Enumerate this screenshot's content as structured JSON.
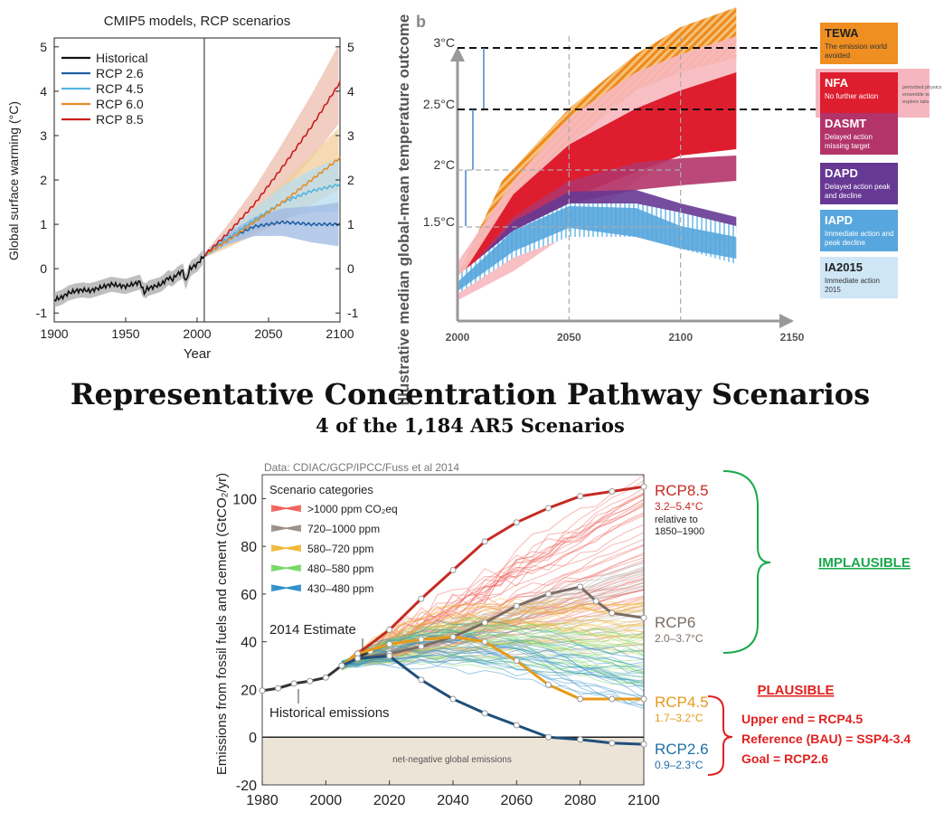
{
  "chart_data": [
    {
      "type": "line",
      "title": "CMIP5 models, RCP scenarios",
      "xlabel": "Year",
      "ylabel": "Global surface warming (°C)",
      "xlim": [
        1900,
        2100
      ],
      "ylim": [
        -1.2,
        5.2
      ],
      "xticks": [
        "1900",
        "1950",
        "2000",
        "2050",
        "2100"
      ],
      "yticks": [
        "-1",
        "0",
        "1",
        "2",
        "3",
        "4",
        "5"
      ],
      "vline_year": 2005,
      "legend_position": "top-left",
      "series": [
        {
          "name": "Historical",
          "color": "#111111",
          "x": [
            1900,
            1905,
            1910,
            1915,
            1920,
            1925,
            1930,
            1935,
            1940,
            1945,
            1950,
            1955,
            1960,
            1963,
            1965,
            1970,
            1975,
            1980,
            1983,
            1985,
            1990,
            1992,
            1995,
            2000,
            2005
          ],
          "y": [
            -0.7,
            -0.65,
            -0.55,
            -0.5,
            -0.48,
            -0.5,
            -0.45,
            -0.4,
            -0.35,
            -0.38,
            -0.4,
            -0.35,
            -0.3,
            -0.55,
            -0.45,
            -0.4,
            -0.35,
            -0.2,
            -0.25,
            -0.15,
            -0.05,
            -0.3,
            0.0,
            0.1,
            0.3
          ]
        },
        {
          "name": "RCP 2.6",
          "color": "#1f5fa5",
          "x": [
            2005,
            2020,
            2040,
            2060,
            2080,
            2100
          ],
          "y": [
            0.3,
            0.65,
            0.95,
            1.05,
            1.0,
            1.0
          ]
        },
        {
          "name": "RCP 4.5",
          "color": "#56b4e0",
          "x": [
            2005,
            2020,
            2040,
            2060,
            2080,
            2100
          ],
          "y": [
            0.3,
            0.65,
            1.1,
            1.5,
            1.75,
            1.9
          ]
        },
        {
          "name": "RCP 6.0",
          "color": "#e48c2a",
          "x": [
            2005,
            2020,
            2040,
            2060,
            2080,
            2100
          ],
          "y": [
            0.3,
            0.6,
            1.05,
            1.5,
            2.0,
            2.5
          ]
        },
        {
          "name": "RCP 8.5",
          "color": "#c8201e",
          "x": [
            2005,
            2020,
            2040,
            2060,
            2080,
            2100
          ],
          "y": [
            0.3,
            0.75,
            1.45,
            2.3,
            3.2,
            4.2
          ]
        }
      ]
    },
    {
      "type": "area",
      "panel_label": "b",
      "ylabel": "Illustrative median global-mean temperature outcome",
      "xticks": [
        "2000",
        "2050",
        "2100",
        "2150"
      ],
      "yticks": [
        "1.5°C",
        "2°C",
        "2.5°C",
        "3°C"
      ],
      "legend": [
        {
          "code": "TEWA",
          "desc": "The emission world avoided",
          "color": "#ef8f22"
        },
        {
          "code": "NFA",
          "desc": "No further action",
          "note": "perturbed physics ensemble to explore tails",
          "color": "#de1e2e"
        },
        {
          "code": "DASMT",
          "desc": "Delayed action missing target",
          "color": "#b33469"
        },
        {
          "code": "DAPD",
          "desc": "Delayed action peak and decline",
          "color": "#673894"
        },
        {
          "code": "IAPD",
          "desc": "Immediate action peak and decline",
          "color": "#57a6dd"
        },
        {
          "code": "IA2015",
          "desc": "Immediate action 2015",
          "color": "#cfe6f7"
        }
      ]
    },
    {
      "type": "line",
      "title": "Representative Concentration Pathway Scenarios",
      "subtitle": "4 of the 1,184 AR5 Scenarios",
      "source": "Data: CDIAC/GCP/IPCC/Fuss et al 2014",
      "ylabel": "Emissions from fossil fuels and cement (GtCO₂/yr)",
      "xlim": [
        1980,
        2100
      ],
      "ylim": [
        -20,
        110
      ],
      "xticks": [
        "1980",
        "2000",
        "2020",
        "2040",
        "2060",
        "2080",
        "2100"
      ],
      "yticks": [
        "-20",
        "0",
        "20",
        "40",
        "60",
        "80",
        "100"
      ],
      "legend_title": "Scenario categories",
      "legend": [
        {
          "label": ">1000 ppm CO₂eq",
          "color": "#f0625a"
        },
        {
          "label": "720–1000 ppm",
          "color": "#9d8e85"
        },
        {
          "label": "580–720 ppm",
          "color": "#f0b93a"
        },
        {
          "label": "480–580 ppm",
          "color": "#77d866"
        },
        {
          "label": "430–480 ppm",
          "color": "#2f8fc8"
        }
      ],
      "annotations": {
        "estimate_2014": "2014 Estimate",
        "historical": "Historical emissions",
        "net_negative": "net-negative global emissions"
      },
      "rcp_labels": [
        {
          "name": "RCP8.5",
          "range": "3.2–5.4°C",
          "note1": "relative to",
          "note2": "1850–1900",
          "color": "#c62a22"
        },
        {
          "name": "RCP6",
          "range": "2.0–3.7°C",
          "color": "#7a6d66"
        },
        {
          "name": "RCP4.5",
          "range": "1.7–3.2°C",
          "color": "#e69a1a"
        },
        {
          "name": "RCP2.6",
          "range": "0.9–2.3°C",
          "color": "#1f6fa8"
        }
      ],
      "series": [
        {
          "name": "Historical",
          "color": "#333333",
          "x": [
            1980,
            1985,
            1990,
            1995,
            2000,
            2005,
            2010,
            2014
          ],
          "y": [
            19.5,
            20.5,
            22.5,
            23.5,
            25,
            30,
            33.5,
            36
          ]
        },
        {
          "name": "RCP8.5",
          "color": "#c62a22",
          "x": [
            2005,
            2010,
            2020,
            2030,
            2040,
            2050,
            2060,
            2070,
            2080,
            2090,
            2100
          ],
          "y": [
            30,
            35,
            45,
            58,
            70,
            82,
            90,
            96,
            101,
            103,
            105
          ]
        },
        {
          "name": "RCP6",
          "color": "#7a6d66",
          "x": [
            2005,
            2010,
            2020,
            2030,
            2040,
            2050,
            2060,
            2070,
            2080,
            2085,
            2090,
            2100
          ],
          "y": [
            30,
            33,
            35,
            38,
            42,
            48,
            55,
            60,
            63,
            57,
            52,
            50
          ]
        },
        {
          "name": "RCP4.5",
          "color": "#e69a1a",
          "x": [
            2005,
            2010,
            2020,
            2030,
            2040,
            2050,
            2060,
            2070,
            2080,
            2090,
            2100
          ],
          "y": [
            30,
            35,
            39,
            41,
            42,
            40,
            32,
            22,
            16,
            16,
            16
          ]
        },
        {
          "name": "RCP2.6",
          "color": "#1f4f7a",
          "x": [
            2005,
            2010,
            2020,
            2030,
            2040,
            2050,
            2060,
            2070,
            2080,
            2090,
            2100
          ],
          "y": [
            30,
            33,
            34,
            24,
            16,
            10,
            5,
            0,
            -1,
            -2.5,
            -3
          ]
        }
      ],
      "callouts": [
        {
          "label": "IMPLAUSIBLE",
          "color": "#1aa84c"
        },
        {
          "label": "PLAUSIBLE",
          "color": "#e02020",
          "lines": [
            "Upper end = RCP4.5",
            "Reference (BAU) = SSP4-3.4",
            "Goal = RCP2.6"
          ]
        }
      ]
    }
  ]
}
